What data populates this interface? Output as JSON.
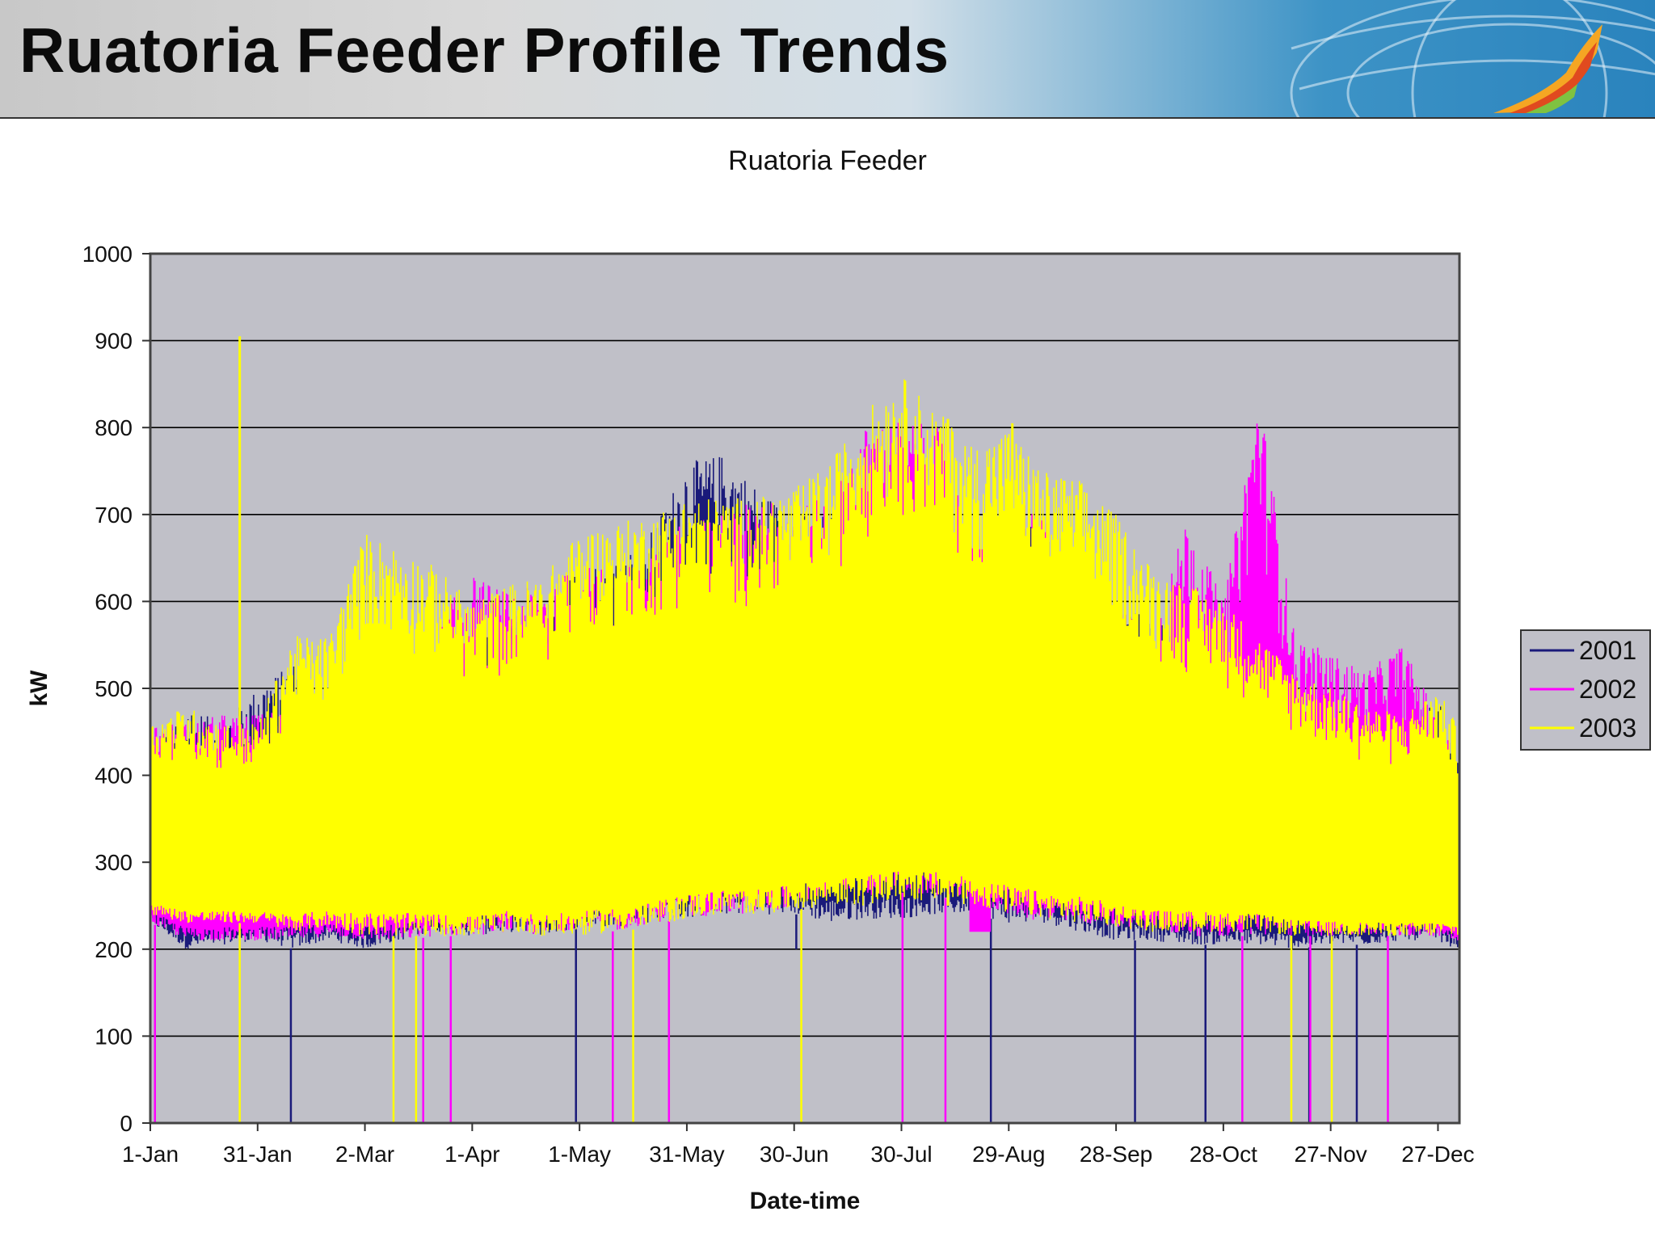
{
  "slide": {
    "title": "Ruatoria Feeder Profile Trends"
  },
  "colors": {
    "series_2001": "#1a1a7a",
    "series_2002": "#ff00ff",
    "series_2003": "#ffff00",
    "plot_bg": "#c0c0c8",
    "grid": "#000000"
  },
  "chart_data": {
    "type": "line",
    "title": "Ruatoria Feeder",
    "xlabel": "Date-time",
    "ylabel": "kW",
    "ylim": [
      0,
      1000
    ],
    "yticks": [
      0,
      100,
      200,
      300,
      400,
      500,
      600,
      700,
      800,
      900,
      1000
    ],
    "xlim_day": [
      0,
      366
    ],
    "xticks": [
      {
        "day": 0,
        "label": "1-Jan"
      },
      {
        "day": 30,
        "label": "31-Jan"
      },
      {
        "day": 60,
        "label": "2-Mar"
      },
      {
        "day": 90,
        "label": "1-Apr"
      },
      {
        "day": 120,
        "label": "1-May"
      },
      {
        "day": 150,
        "label": "31-May"
      },
      {
        "day": 180,
        "label": "30-Jun"
      },
      {
        "day": 210,
        "label": "30-Jul"
      },
      {
        "day": 240,
        "label": "29-Aug"
      },
      {
        "day": 270,
        "label": "28-Sep"
      },
      {
        "day": 300,
        "label": "28-Oct"
      },
      {
        "day": 330,
        "label": "27-Nov"
      },
      {
        "day": 360,
        "label": "27-Dec"
      }
    ],
    "legend_position": "right",
    "series": [
      {
        "name": "2001",
        "color": "#1a1a7a",
        "note": "approximate daily min/max envelope in kW",
        "days": [
          0,
          10,
          20,
          30,
          40,
          50,
          60,
          70,
          80,
          90,
          100,
          110,
          120,
          130,
          140,
          150,
          160,
          170,
          180,
          190,
          200,
          210,
          220,
          230,
          240,
          250,
          260,
          270,
          280,
          290,
          300,
          310,
          320,
          330,
          340,
          350,
          360,
          365
        ],
        "max": [
          420,
          480,
          460,
          500,
          530,
          470,
          500,
          520,
          530,
          560,
          570,
          600,
          640,
          650,
          680,
          760,
          770,
          730,
          700,
          700,
          720,
          720,
          690,
          650,
          680,
          690,
          660,
          600,
          580,
          570,
          560,
          520,
          500,
          480,
          470,
          480,
          490,
          420
        ],
        "min": [
          230,
          200,
          205,
          210,
          200,
          210,
          200,
          210,
          220,
          215,
          220,
          215,
          225,
          225,
          230,
          235,
          240,
          240,
          240,
          230,
          235,
          235,
          240,
          240,
          230,
          230,
          220,
          210,
          210,
          205,
          205,
          205,
          200,
          205,
          205,
          210,
          210,
          200
        ],
        "dropouts": [
          [
            39,
            1,
            0
          ],
          [
            119,
            0,
            0
          ],
          [
            180,
            2,
            200
          ],
          [
            235,
            0,
            0
          ],
          [
            275,
            1,
            0
          ],
          [
            295,
            0,
            0
          ],
          [
            324,
            0,
            0
          ],
          [
            337,
            1,
            0
          ]
        ]
      },
      {
        "name": "2002",
        "color": "#ff00ff",
        "note": "approximate daily min/max envelope in kW",
        "days": [
          0,
          10,
          20,
          30,
          40,
          50,
          60,
          70,
          80,
          90,
          100,
          110,
          120,
          130,
          140,
          150,
          160,
          170,
          180,
          190,
          200,
          210,
          220,
          230,
          240,
          250,
          260,
          270,
          280,
          290,
          300,
          310,
          320,
          330,
          340,
          350,
          360,
          365
        ],
        "max": [
          460,
          460,
          470,
          470,
          480,
          470,
          500,
          520,
          580,
          630,
          610,
          620,
          640,
          640,
          650,
          700,
          700,
          720,
          710,
          720,
          800,
          810,
          800,
          680,
          720,
          700,
          650,
          600,
          560,
          700,
          600,
          840,
          560,
          540,
          520,
          550,
          470,
          420
        ],
        "min": [
          230,
          210,
          210,
          210,
          210,
          215,
          210,
          210,
          215,
          215,
          220,
          215,
          225,
          220,
          230,
          235,
          240,
          240,
          250,
          260,
          260,
          265,
          260,
          255,
          240,
          230,
          230,
          225,
          220,
          215,
          215,
          215,
          215,
          215,
          215,
          215,
          215,
          210
        ],
        "dropouts": [
          [
            1,
            1,
            0
          ],
          [
            76,
            1,
            0
          ],
          [
            84,
            0,
            0
          ],
          [
            129,
            1,
            0
          ],
          [
            145,
            0,
            0
          ],
          [
            210,
            1,
            0
          ],
          [
            222,
            1,
            0
          ],
          [
            305,
            1,
            0
          ],
          [
            324,
            1,
            0
          ],
          [
            346,
            0,
            0
          ]
        ],
        "block": {
          "day_start": 229,
          "day_end": 235,
          "low": 220,
          "high": 660
        }
      },
      {
        "name": "2003",
        "color": "#ffff00",
        "note": "approximate daily min/max envelope in kW",
        "days": [
          0,
          10,
          20,
          30,
          40,
          50,
          60,
          70,
          80,
          90,
          100,
          110,
          120,
          130,
          140,
          150,
          160,
          170,
          180,
          190,
          200,
          210,
          220,
          230,
          240,
          250,
          260,
          270,
          280,
          290,
          300,
          310,
          320,
          330,
          340,
          350,
          360,
          365
        ],
        "max": [
          460,
          480,
          460,
          460,
          560,
          560,
          680,
          660,
          640,
          600,
          620,
          630,
          680,
          690,
          700,
          720,
          720,
          720,
          730,
          760,
          820,
          860,
          820,
          780,
          800,
          750,
          740,
          700,
          640,
          620,
          600,
          560,
          520,
          500,
          480,
          470,
          500,
          460
        ],
        "min": [
          240,
          230,
          230,
          230,
          220,
          225,
          215,
          215,
          215,
          215,
          220,
          215,
          215,
          220,
          225,
          235,
          240,
          240,
          245,
          250,
          250,
          255,
          255,
          250,
          240,
          235,
          230,
          225,
          220,
          220,
          220,
          220,
          215,
          215,
          215,
          215,
          215,
          215
        ],
        "spikes": [
          [
            25,
            905
          ],
          [
            223,
            810
          ],
          [
            241,
            805
          ]
        ],
        "dropouts": [
          [
            25,
            0,
            0
          ],
          [
            68,
            0,
            0
          ],
          [
            74,
            1,
            0
          ],
          [
            135,
            0,
            0
          ],
          [
            182,
            0,
            0
          ],
          [
            319,
            0,
            0
          ],
          [
            330,
            1,
            0
          ]
        ]
      }
    ]
  }
}
